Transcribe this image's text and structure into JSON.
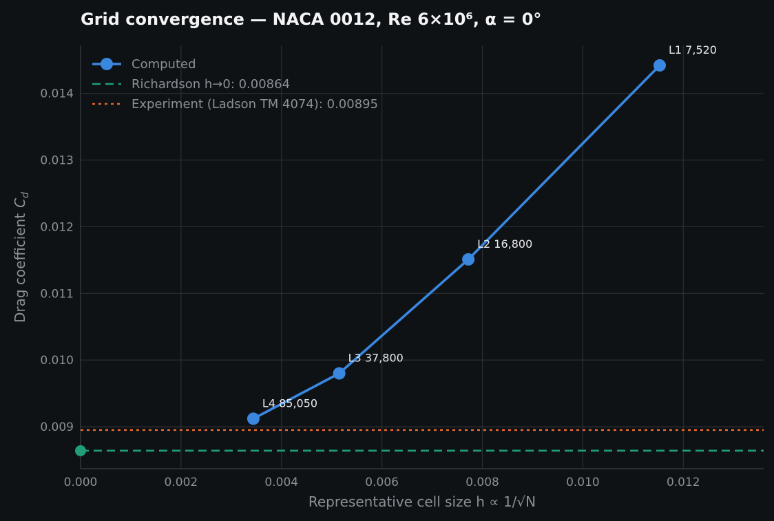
{
  "chart_data": {
    "type": "line",
    "title": "Grid convergence — NACA 0012, Re 6×10⁶, α = 0°",
    "xlabel": "Representative cell size  h ∝ 1/√N",
    "ylabel": "Drag coefficient",
    "ylabel_symbol": "C",
    "ylabel_subscript": "d",
    "xlim": [
      0.0,
      0.0136
    ],
    "ylim": [
      0.00837,
      0.01472
    ],
    "xticks": [
      0.0,
      0.002,
      0.004,
      0.006,
      0.008,
      0.01,
      0.012
    ],
    "xtick_labels": [
      "0.000",
      "0.002",
      "0.004",
      "0.006",
      "0.008",
      "0.010",
      "0.012"
    ],
    "yticks": [
      0.009,
      0.01,
      0.011,
      0.012,
      0.013,
      0.014
    ],
    "ytick_labels": [
      "0.009",
      "0.010",
      "0.011",
      "0.012",
      "0.013",
      "0.014"
    ],
    "grid": true,
    "legend_position": "top-left",
    "series": [
      {
        "name": "Computed",
        "style": "line-marker",
        "color": "#3a87e0",
        "points": [
          {
            "x": 0.00344,
            "y": 0.00912,
            "label": "L4  85,050"
          },
          {
            "x": 0.00515,
            "y": 0.0098,
            "label": "L3  37,800"
          },
          {
            "x": 0.00772,
            "y": 0.01151,
            "label": "L2  16,800"
          },
          {
            "x": 0.01153,
            "y": 0.01442,
            "label": "L1  7,520"
          }
        ]
      },
      {
        "name": "Richardson h→0: 0.00864",
        "style": "dashed",
        "color": "#1f9e78",
        "value": 0.00864,
        "marker_at_zero": true
      },
      {
        "name": "Experiment (Ladson TM 4074): 0.00895",
        "style": "dotted",
        "color": "#e0652c",
        "value": 0.00895
      }
    ]
  }
}
